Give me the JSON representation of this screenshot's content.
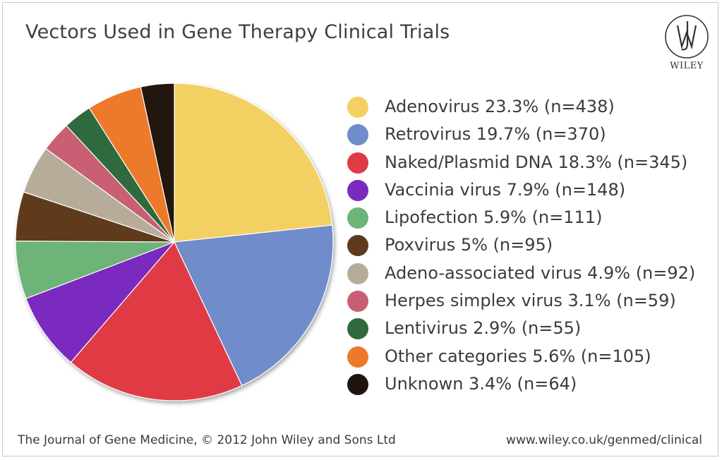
{
  "chart_data": {
    "type": "pie",
    "title": "Vectors Used in Gene Therapy Clinical Trials",
    "legend_position": "right",
    "slices": [
      {
        "label": "Adenovirus 23.3% (n=438)",
        "value": 23.3,
        "color": "#f3d062"
      },
      {
        "label": "Retrovirus 19.7% (n=370)",
        "value": 19.7,
        "color": "#6f8ccb"
      },
      {
        "label": "Naked/Plasmid DNA 18.3% (n=345)",
        "value": 18.3,
        "color": "#e03a45"
      },
      {
        "label": "Vaccinia virus 7.9% (n=148)",
        "value": 7.9,
        "color": "#7a2bbf"
      },
      {
        "label": "Lipofection 5.9% (n=111)",
        "value": 5.9,
        "color": "#6eb378"
      },
      {
        "label": "Poxvirus 5% (n=95)",
        "value": 5.0,
        "color": "#5e3a1e"
      },
      {
        "label": "Adeno-associated virus 4.9% (n=92)",
        "value": 4.9,
        "color": "#b7ac9a"
      },
      {
        "label": "Herpes simplex virus 3.1% (n=59)",
        "value": 3.1,
        "color": "#c85f72"
      },
      {
        "label": "Lentivirus 2.9% (n=55)",
        "value": 2.9,
        "color": "#2e6a3c"
      },
      {
        "label": "Other categories 5.6% (n=105)",
        "value": 5.6,
        "color": "#ec7a2a"
      },
      {
        "label": "Unknown 3.4% (n=64)",
        "value": 3.4,
        "color": "#20140e"
      }
    ]
  },
  "logo": {
    "word": "WILEY",
    "monogram": "JW"
  },
  "footer": {
    "left": "The Journal of Gene Medicine, © 2012 John Wiley and Sons Ltd",
    "right": "www.wiley.co.uk/genmed/clinical"
  }
}
